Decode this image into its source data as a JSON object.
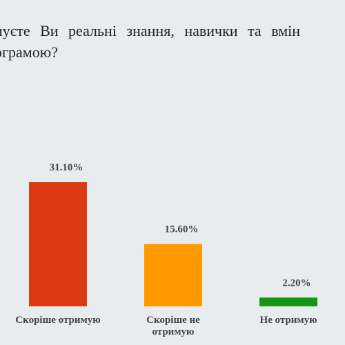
{
  "title": {
    "line1": "нуєте Ви реальні знання, навички та вмін",
    "line2": "ограмою?"
  },
  "chart_data": {
    "type": "bar",
    "title": "нуєте Ви реальні знання, навички та вмін ограмою?",
    "xlabel": "",
    "ylabel": "",
    "ylim": [
      0,
      35
    ],
    "grid": false,
    "categories": [
      "Скоріше отримую",
      "Скоріше не отримую",
      "Не отримую"
    ],
    "category_lines": [
      [
        "Скоріше отримую"
      ],
      [
        "Скоріше не",
        "отримую"
      ],
      [
        "Не отримую"
      ]
    ],
    "values": [
      31.1,
      15.6,
      2.2
    ],
    "value_labels": [
      "31.10%",
      "15.60%",
      "2.20%"
    ],
    "colors": [
      "#dc3a12",
      "#ff9900",
      "#149614"
    ]
  }
}
